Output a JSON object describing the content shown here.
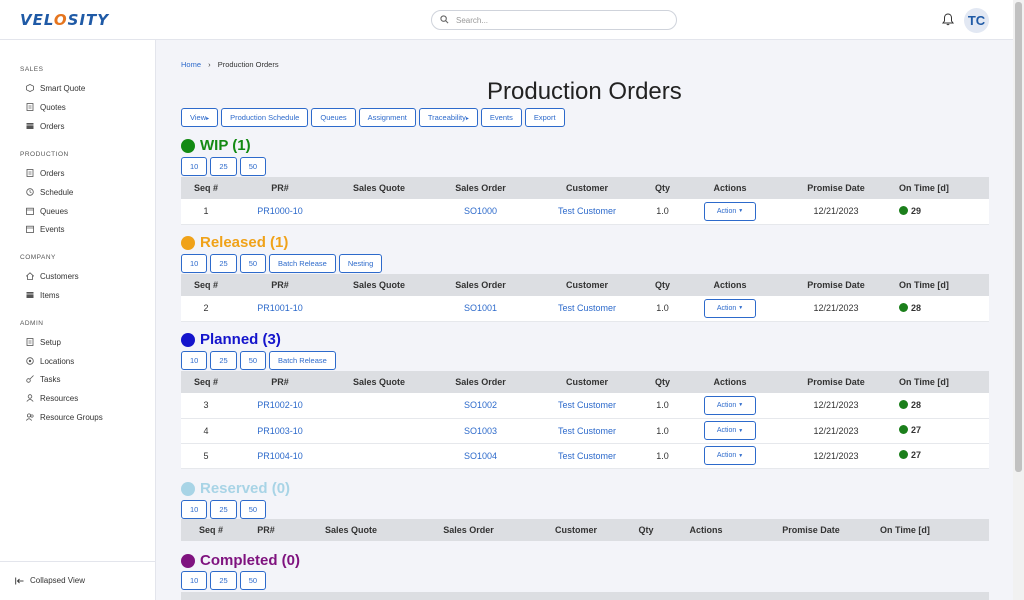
{
  "app": {
    "logo": "VELOSITY"
  },
  "search": {
    "placeholder": "Search..."
  },
  "user": {
    "initials": "TC"
  },
  "sidebar": {
    "sections": [
      {
        "title": "SALES",
        "items": [
          "Smart Quote",
          "Quotes",
          "Orders"
        ]
      },
      {
        "title": "PRODUCTION",
        "items": [
          "Orders",
          "Schedule",
          "Queues",
          "Events"
        ]
      },
      {
        "title": "COMPANY",
        "items": [
          "Customers",
          "Items"
        ]
      },
      {
        "title": "ADMIN",
        "items": [
          "Setup",
          "Locations",
          "Tasks",
          "Resources",
          "Resource Groups"
        ]
      }
    ],
    "collapse_label": "Collapsed View"
  },
  "breadcrumb": {
    "home": "Home",
    "separator": "›",
    "current": "Production Orders"
  },
  "page_title": "Production Orders",
  "toolbar": [
    "View",
    "Production Schedule",
    "Queues",
    "Assignment",
    "Traceability",
    "Events",
    "Export"
  ],
  "columns": [
    "Seq #",
    "PR#",
    "Sales Quote",
    "Sales Order",
    "Customer",
    "Qty",
    "Actions",
    "Promise Date",
    "On Time [d]"
  ],
  "action_label": "Action",
  "sections": {
    "wip": {
      "title": "WIP (1)",
      "color": "#138a13",
      "buttons": [
        "10",
        "25",
        "50"
      ],
      "rows": [
        {
          "seq": "1",
          "pr": "PR1000-10",
          "quote": "",
          "so": "SO1000",
          "customer": "Test Customer",
          "qty": "1.0",
          "date": "12/21/2023",
          "ontime": "29"
        }
      ]
    },
    "released": {
      "title": "Released (1)",
      "color": "#f0a219",
      "buttons": [
        "10",
        "25",
        "50",
        "Batch Release",
        "Nesting"
      ],
      "rows": [
        {
          "seq": "2",
          "pr": "PR1001-10",
          "quote": "",
          "so": "SO1001",
          "customer": "Test Customer",
          "qty": "1.0",
          "date": "12/21/2023",
          "ontime": "28"
        }
      ]
    },
    "planned": {
      "title": "Planned (3)",
      "color": "#1414cc",
      "buttons": [
        "10",
        "25",
        "50",
        "Batch Release"
      ],
      "rows": [
        {
          "seq": "3",
          "pr": "PR1002-10",
          "quote": "",
          "so": "SO1002",
          "customer": "Test Customer",
          "qty": "1.0",
          "date": "12/21/2023",
          "ontime": "28"
        },
        {
          "seq": "4",
          "pr": "PR1003-10",
          "quote": "",
          "so": "SO1003",
          "customer": "Test Customer",
          "qty": "1.0",
          "date": "12/21/2023",
          "ontime": "27"
        },
        {
          "seq": "5",
          "pr": "PR1004-10",
          "quote": "",
          "so": "SO1004",
          "customer": "Test Customer",
          "qty": "1.0",
          "date": "12/21/2023",
          "ontime": "27"
        }
      ]
    },
    "reserved": {
      "title": "Reserved (0)",
      "color": "#a8d4e6",
      "buttons": [
        "10",
        "25",
        "50"
      ],
      "rows": []
    },
    "completed": {
      "title": "Completed (0)",
      "color": "#7f137f",
      "buttons": [
        "10",
        "25",
        "50"
      ],
      "rows": []
    }
  }
}
